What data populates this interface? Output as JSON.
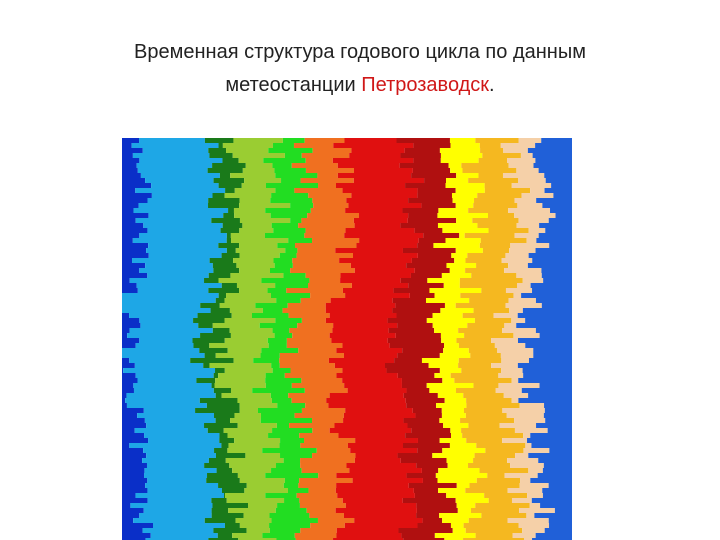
{
  "title": {
    "line1": "Временная структура годового цикла по данным",
    "line2": "метеостанции",
    "place": "Петрозаводск",
    "end": "."
  }
}
